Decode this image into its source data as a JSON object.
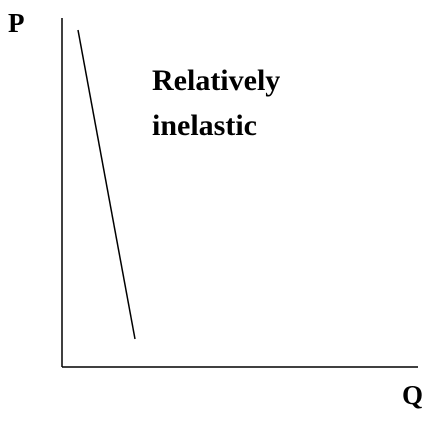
{
  "axes": {
    "y_label": "P",
    "x_label": "Q"
  },
  "curve_label": {
    "lines": [
      "Relatively",
      "inelastic"
    ]
  }
}
